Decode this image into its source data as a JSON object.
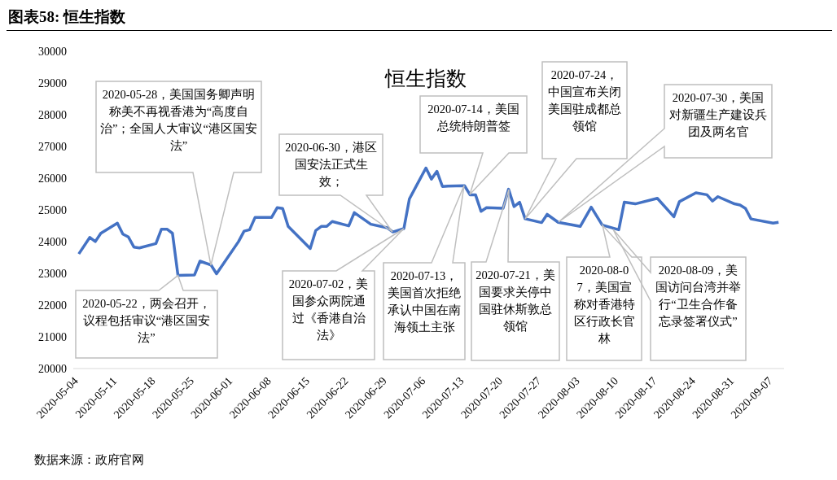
{
  "chart_data": {
    "type": "line",
    "title": "图表58: 恒生指数",
    "subtitle": "恒生指数",
    "x": [
      "2020-05-04",
      "2020-05-06",
      "2020-05-07",
      "2020-05-08",
      "2020-05-11",
      "2020-05-12",
      "2020-05-13",
      "2020-05-14",
      "2020-05-15",
      "2020-05-18",
      "2020-05-19",
      "2020-05-20",
      "2020-05-21",
      "2020-05-22",
      "2020-05-25",
      "2020-05-26",
      "2020-05-28",
      "2020-05-29",
      "2020-06-02",
      "2020-06-03",
      "2020-06-04",
      "2020-06-05",
      "2020-06-08",
      "2020-06-09",
      "2020-06-10",
      "2020-06-11",
      "2020-06-15",
      "2020-06-16",
      "2020-06-17",
      "2020-06-18",
      "2020-06-19",
      "2020-06-22",
      "2020-06-23",
      "2020-06-26",
      "2020-06-29",
      "2020-06-30",
      "2020-07-02",
      "2020-07-03",
      "2020-07-06",
      "2020-07-07",
      "2020-07-08",
      "2020-07-09",
      "2020-07-10",
      "2020-07-13",
      "2020-07-14",
      "2020-07-15",
      "2020-07-16",
      "2020-07-17",
      "2020-07-20",
      "2020-07-21",
      "2020-07-22",
      "2020-07-23",
      "2020-07-24",
      "2020-07-27",
      "2020-07-28",
      "2020-07-30",
      "2020-08-03",
      "2020-08-05",
      "2020-08-07",
      "2020-08-10",
      "2020-08-11",
      "2020-08-13",
      "2020-08-17",
      "2020-08-20",
      "2020-08-21",
      "2020-08-24",
      "2020-08-26",
      "2020-08-27",
      "2020-08-28",
      "2020-08-31",
      "2020-09-01",
      "2020-09-02",
      "2020-09-03",
      "2020-09-07",
      "2020-09-08"
    ],
    "series": [
      {
        "color": "#4472c4",
        "values": [
          23612,
          24133,
          24003,
          24263,
          24583,
          24237,
          24148,
          23828,
          23802,
          23940,
          24393,
          24393,
          24263,
          22935,
          22950,
          23385,
          23263,
          22987,
          24003,
          24331,
          24375,
          24766,
          24766,
          25070,
          25044,
          24479,
          23784,
          24349,
          24479,
          24479,
          24635,
          24497,
          24914,
          24549,
          24435,
          24305,
          24409,
          25346,
          26320,
          25971,
          26216,
          25737,
          25750,
          25763,
          25477,
          25477,
          24956,
          25070,
          25052,
          25651,
          25104,
          25242,
          24721,
          24600,
          24860,
          24609,
          24479,
          25086,
          24523,
          24375,
          25242,
          25190,
          25365,
          24784,
          25260,
          25538,
          25477,
          25279,
          25417,
          25190,
          25156,
          25044,
          24714,
          24583,
          24609
        ]
      }
    ],
    "xlim": [
      "2020-05-03",
      "2020-09-09"
    ],
    "xticks": [
      "2020-05-04",
      "2020-05-11",
      "2020-05-18",
      "2020-05-25",
      "2020-06-01",
      "2020-06-08",
      "2020-06-15",
      "2020-06-22",
      "2020-06-29",
      "2020-07-06",
      "2020-07-13",
      "2020-07-20",
      "2020-07-27",
      "2020-08-03",
      "2020-08-10",
      "2020-08-17",
      "2020-08-24",
      "2020-08-31",
      "2020-09-07"
    ],
    "ylim": [
      20000,
      30000
    ],
    "yticks": [
      20000,
      21000,
      22000,
      23000,
      24000,
      25000,
      26000,
      27000,
      28000,
      29000,
      30000
    ],
    "annotations": [
      {
        "text": "2020-05-22，两会召开，议程包括审议“港区国安法”",
        "x": "2020-05-22",
        "y": 22935
      },
      "2020-05-28，美国国务卿声明称美不再视香港为“高度自治”；全国人大审议“港区国安法”",
      "2020-06-30，港区国安法正式生效；",
      "2020-07-02，美国参众两院通过《香港自治法》",
      "2020-07-13，美国首次拒绝承认中国在南海领土主张",
      "2020-07-14，美国总统特朗普签",
      "2020-07-21，美国要求关停中国驻休斯敦总领馆",
      "2020-07-24，中国宣布关闭美国驻成都总领馆",
      "2020-07-30，美国对新疆生产建设兵团及两名官",
      "2020-08-07，美国宣称对香港特区行政长官林",
      "2020-08-09，美国访问台湾并举行“卫生合作备忘录签署仪式”",
      "数据来源：政府官网"
    ]
  }
}
